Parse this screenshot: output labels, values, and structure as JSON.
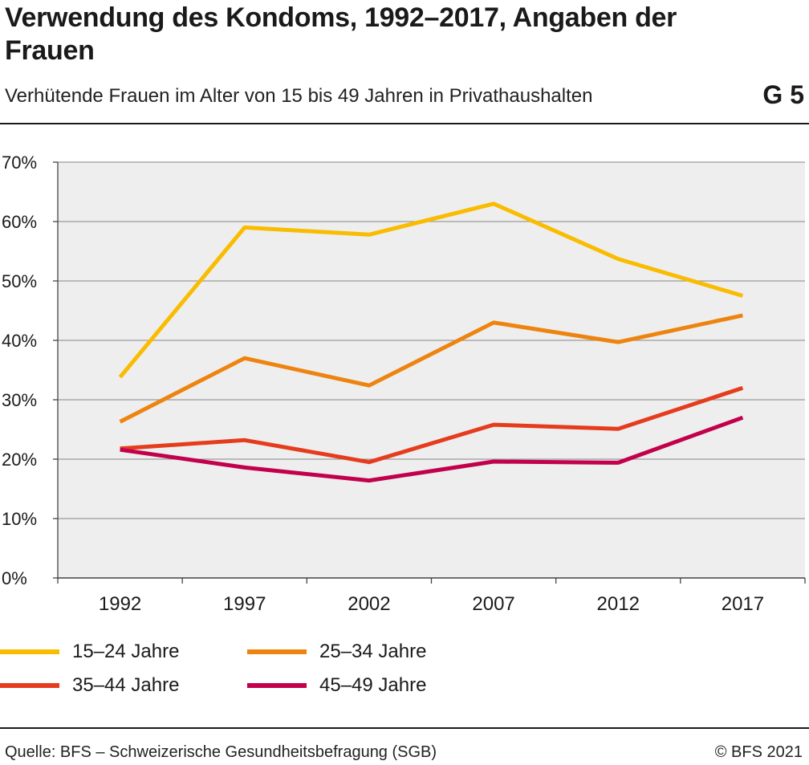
{
  "header": {
    "title": "Verwendung des Kondoms, 1992–2017, Angaben der Frauen",
    "subtitle": "Verhütende Frauen im Alter von 15 bis 49 Jahren in Privathaushalten",
    "chart_id": "G 5"
  },
  "footer": {
    "source": "Quelle: BFS – Schweizerische Gesundheitsbefragung (SGB)",
    "copyright": "© BFS 2021"
  },
  "chart_data": {
    "type": "line",
    "title": "Verwendung des Kondoms, 1992–2017, Angaben der Frauen",
    "subtitle": "Verhütende Frauen im Alter von 15 bis 49 Jahren in Privathaushalten",
    "categories": [
      "1992",
      "1997",
      "2002",
      "2007",
      "2012",
      "2017"
    ],
    "y_ticks": [
      "0%",
      "10%",
      "20%",
      "30%",
      "40%",
      "50%",
      "60%",
      "70%"
    ],
    "ylim": [
      0,
      70
    ],
    "grid": true,
    "legend_position": "bottom",
    "series": [
      {
        "name": "15–24 Jahre",
        "color": "#f9bc00",
        "values": [
          33.8,
          59.0,
          57.8,
          63.0,
          53.7,
          47.5
        ]
      },
      {
        "name": "25–34 Jahre",
        "color": "#ee8410",
        "values": [
          26.3,
          37.0,
          32.4,
          43.0,
          39.7,
          44.2
        ]
      },
      {
        "name": "35–44 Jahre",
        "color": "#e63c1e",
        "values": [
          21.8,
          23.2,
          19.5,
          25.8,
          25.1,
          32.0
        ]
      },
      {
        "name": "45–49 Jahre",
        "color": "#c2004c",
        "values": [
          21.6,
          18.6,
          16.4,
          19.6,
          19.4,
          27.0
        ]
      }
    ],
    "plot_background": "#eeeeee",
    "gridline_color": "#9a9a9a"
  }
}
